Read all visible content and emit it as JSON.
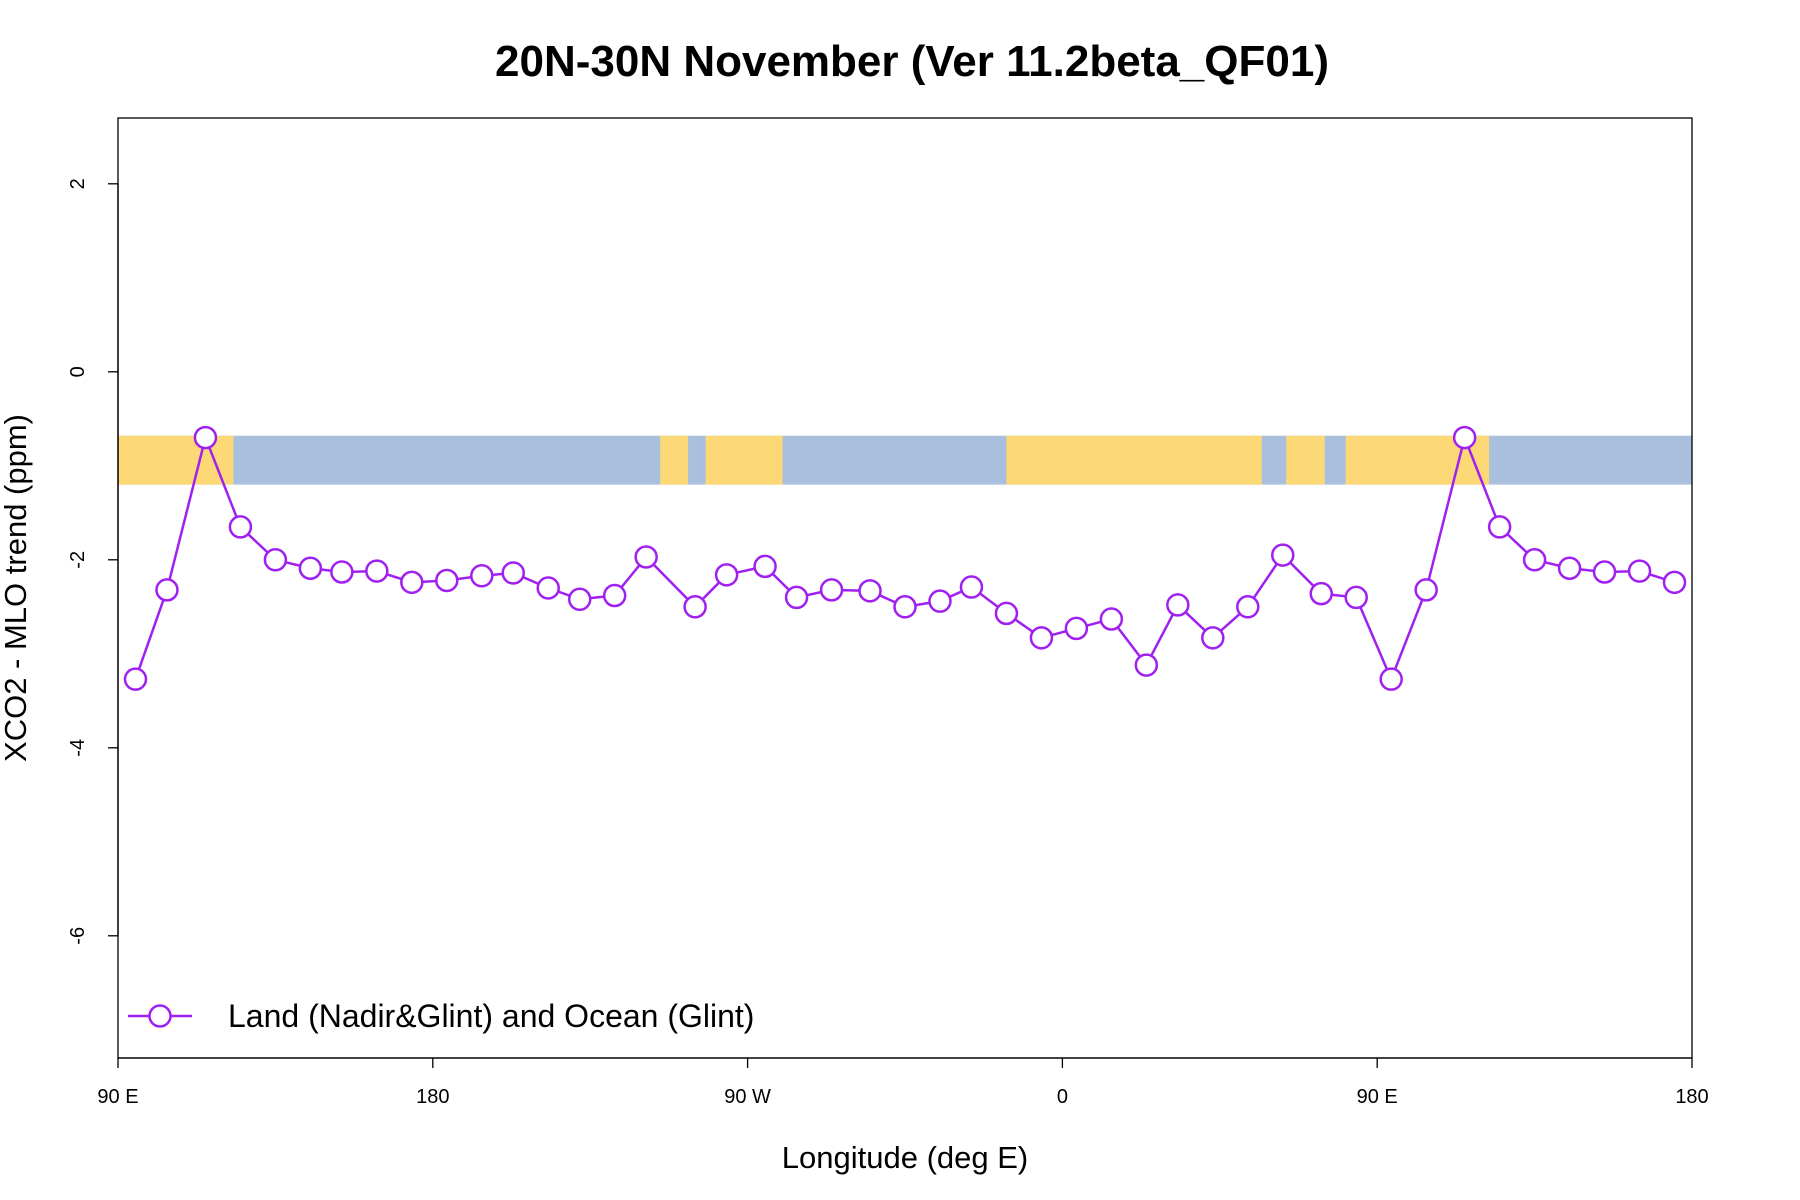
{
  "chart_data": {
    "type": "line",
    "title": "20N-30N November (Ver 11.2beta_QF01)",
    "xlabel": "Longitude (deg E)",
    "ylabel": "XCO2 - MLO trend (ppm)",
    "xlim": [
      0,
      450
    ],
    "ylim": [
      -7.3,
      2.7
    ],
    "x_ticks": [
      {
        "value": 0,
        "label": "90 E"
      },
      {
        "value": 90,
        "label": "180"
      },
      {
        "value": 180,
        "label": "90 W"
      },
      {
        "value": 270,
        "label": "0"
      },
      {
        "value": 360,
        "label": "90 E"
      },
      {
        "value": 450,
        "label": "180"
      }
    ],
    "y_ticks": [
      {
        "value": 2,
        "label": "2"
      },
      {
        "value": 0,
        "label": "0"
      },
      {
        "value": -2,
        "label": "-2"
      },
      {
        "value": -4,
        "label": "-4"
      },
      {
        "value": -6,
        "label": "-6"
      }
    ],
    "map_strip": {
      "y_range": [
        -1.2,
        -0.68
      ],
      "land_color": "#FDD876",
      "ocean_color": "#A8BFDD",
      "land_segments_x": [
        [
          0,
          33
        ],
        [
          155,
          163
        ],
        [
          168,
          190
        ],
        [
          254,
          327
        ],
        [
          334,
          345
        ],
        [
          351,
          392
        ]
      ]
    },
    "series": [
      {
        "name": "Land (Nadir&Glint) and Ocean (Glint)",
        "color": "#A020F0",
        "marker": "open-circle",
        "x": [
          5,
          14,
          25,
          35,
          45,
          55,
          64,
          74,
          84,
          94,
          104,
          113,
          123,
          132,
          142,
          151,
          165,
          174,
          185,
          194,
          204,
          215,
          225,
          235,
          244,
          254,
          264,
          274,
          284,
          294,
          303,
          313,
          323,
          333,
          344,
          354,
          364,
          374,
          385,
          395,
          405,
          415,
          425,
          435,
          445
        ],
        "values": [
          -3.27,
          -2.32,
          -0.7,
          -1.65,
          -2.0,
          -2.09,
          -2.13,
          -2.12,
          -2.24,
          -2.22,
          -2.17,
          -2.14,
          -2.3,
          -2.42,
          -2.38,
          -1.97,
          -2.5,
          -2.16,
          -2.07,
          -2.4,
          -2.32,
          -2.33,
          -2.5,
          -2.44,
          -2.29,
          -2.57,
          -2.83,
          -2.73,
          -2.63,
          -3.12,
          -2.48,
          -2.83,
          -2.5,
          -1.95,
          -2.36,
          -2.4,
          -3.27,
          -2.32,
          -0.7,
          -1.65,
          -2.0,
          -2.09,
          -2.13,
          -2.12,
          -2.24
        ]
      }
    ],
    "legend": {
      "position": "bottom-left",
      "entries": [
        "Land (Nadir&Glint) and Ocean (Glint)"
      ]
    },
    "grid": false
  }
}
